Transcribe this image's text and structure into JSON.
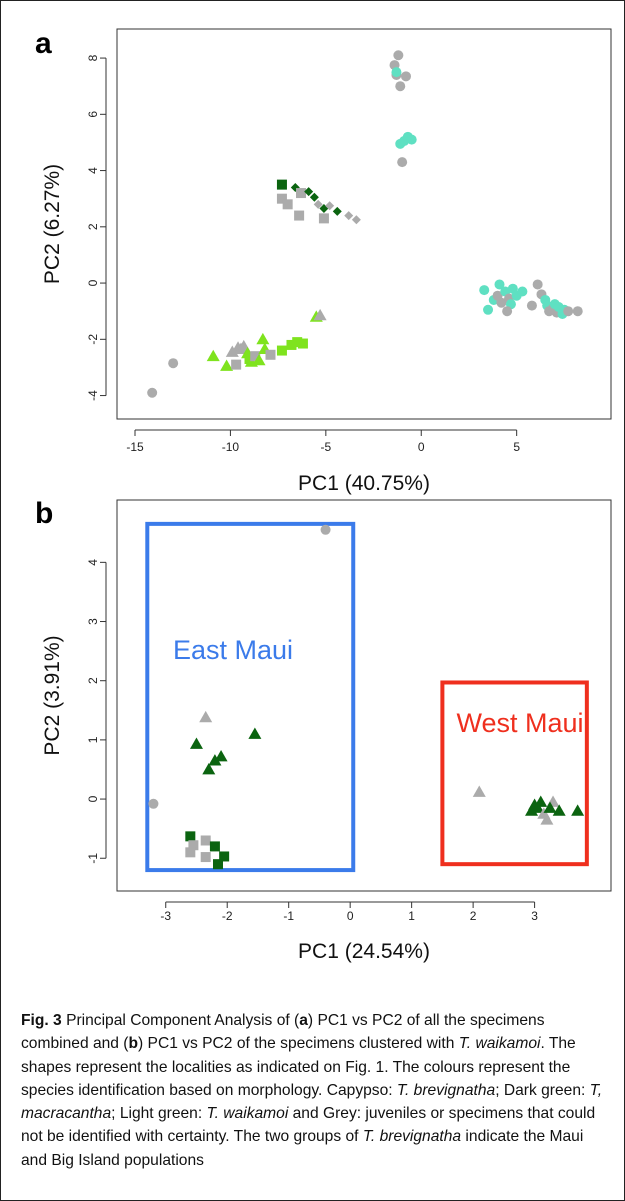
{
  "chart_data": [
    {
      "type": "scatter",
      "panel_label": "a",
      "xlabel": "PC1 (40.75%)",
      "ylabel": "PC2 (6.27%)",
      "xlim": [
        -15,
        9
      ],
      "ylim": [
        -4.3,
        8.5
      ],
      "xticks": [
        -15,
        -10,
        -5,
        0,
        5
      ],
      "yticks": [
        -4,
        -2,
        0,
        2,
        4,
        6,
        8
      ],
      "colors": {
        "grey": "#ababab",
        "dark_green": "#0b6410",
        "light_green": "#7fe31e",
        "turquoise": "#5fe0c2"
      },
      "points": [
        {
          "x": -14.1,
          "y": -3.9,
          "shape": "circle",
          "color": "grey"
        },
        {
          "x": -13.0,
          "y": -2.85,
          "shape": "circle",
          "color": "grey"
        },
        {
          "x": -10.9,
          "y": -2.6,
          "shape": "triangle",
          "color": "light_green"
        },
        {
          "x": -10.2,
          "y": -2.95,
          "shape": "triangle",
          "color": "light_green"
        },
        {
          "x": -9.9,
          "y": -2.45,
          "shape": "triangle",
          "color": "grey"
        },
        {
          "x": -9.6,
          "y": -2.3,
          "shape": "triangle",
          "color": "grey"
        },
        {
          "x": -9.45,
          "y": -2.35,
          "shape": "triangle",
          "color": "grey"
        },
        {
          "x": -9.3,
          "y": -2.25,
          "shape": "triangle",
          "color": "grey"
        },
        {
          "x": -9.7,
          "y": -2.9,
          "shape": "square",
          "color": "grey"
        },
        {
          "x": -9.1,
          "y": -2.5,
          "shape": "triangle",
          "color": "light_green"
        },
        {
          "x": -9.0,
          "y": -2.7,
          "shape": "square",
          "color": "light_green"
        },
        {
          "x": -8.9,
          "y": -2.8,
          "shape": "triangle",
          "color": "light_green"
        },
        {
          "x": -8.7,
          "y": -2.6,
          "shape": "square",
          "color": "grey"
        },
        {
          "x": -8.5,
          "y": -2.75,
          "shape": "triangle",
          "color": "light_green"
        },
        {
          "x": -8.3,
          "y": -2.0,
          "shape": "triangle",
          "color": "light_green"
        },
        {
          "x": -8.2,
          "y": -2.35,
          "shape": "triangle",
          "color": "light_green"
        },
        {
          "x": -7.9,
          "y": -2.55,
          "shape": "square",
          "color": "grey"
        },
        {
          "x": -7.3,
          "y": -2.4,
          "shape": "square",
          "color": "light_green"
        },
        {
          "x": -6.8,
          "y": -2.2,
          "shape": "square",
          "color": "light_green"
        },
        {
          "x": -6.5,
          "y": -2.1,
          "shape": "square",
          "color": "light_green"
        },
        {
          "x": -6.2,
          "y": -2.15,
          "shape": "square",
          "color": "light_green"
        },
        {
          "x": -5.5,
          "y": -1.2,
          "shape": "triangle",
          "color": "light_green"
        },
        {
          "x": -5.3,
          "y": -1.15,
          "shape": "triangle",
          "color": "grey"
        },
        {
          "x": -7.3,
          "y": 3.5,
          "shape": "square",
          "color": "dark_green"
        },
        {
          "x": -7.3,
          "y": 3.0,
          "shape": "square",
          "color": "grey"
        },
        {
          "x": -7.0,
          "y": 2.8,
          "shape": "square",
          "color": "grey"
        },
        {
          "x": -6.6,
          "y": 3.4,
          "shape": "diamond",
          "color": "dark_green"
        },
        {
          "x": -6.3,
          "y": 3.2,
          "shape": "square",
          "color": "grey"
        },
        {
          "x": -6.4,
          "y": 2.4,
          "shape": "square",
          "color": "grey"
        },
        {
          "x": -5.9,
          "y": 3.25,
          "shape": "diamond",
          "color": "dark_green"
        },
        {
          "x": -5.6,
          "y": 3.05,
          "shape": "diamond",
          "color": "dark_green"
        },
        {
          "x": -5.4,
          "y": 2.8,
          "shape": "diamond",
          "color": "grey"
        },
        {
          "x": -5.1,
          "y": 2.3,
          "shape": "square",
          "color": "grey"
        },
        {
          "x": -5.1,
          "y": 2.65,
          "shape": "diamond",
          "color": "dark_green"
        },
        {
          "x": -4.8,
          "y": 2.75,
          "shape": "diamond",
          "color": "grey"
        },
        {
          "x": -4.4,
          "y": 2.55,
          "shape": "diamond",
          "color": "dark_green"
        },
        {
          "x": -3.8,
          "y": 2.4,
          "shape": "diamond",
          "color": "grey"
        },
        {
          "x": -3.4,
          "y": 2.25,
          "shape": "diamond",
          "color": "grey"
        },
        {
          "x": -1.4,
          "y": 7.75,
          "shape": "circle",
          "color": "grey"
        },
        {
          "x": -1.2,
          "y": 8.1,
          "shape": "circle",
          "color": "grey"
        },
        {
          "x": -1.3,
          "y": 7.4,
          "shape": "circle",
          "color": "grey"
        },
        {
          "x": -1.1,
          "y": 7.0,
          "shape": "circle",
          "color": "grey"
        },
        {
          "x": -0.8,
          "y": 7.35,
          "shape": "circle",
          "color": "grey"
        },
        {
          "x": -1.3,
          "y": 7.5,
          "shape": "circle",
          "color": "turquoise"
        },
        {
          "x": -0.9,
          "y": 5.05,
          "shape": "circle",
          "color": "turquoise"
        },
        {
          "x": -0.7,
          "y": 5.2,
          "shape": "circle",
          "color": "turquoise"
        },
        {
          "x": -0.5,
          "y": 5.1,
          "shape": "circle",
          "color": "turquoise"
        },
        {
          "x": -1.1,
          "y": 4.95,
          "shape": "circle",
          "color": "turquoise"
        },
        {
          "x": -1.0,
          "y": 4.3,
          "shape": "circle",
          "color": "grey"
        },
        {
          "x": 3.3,
          "y": -0.25,
          "shape": "circle",
          "color": "turquoise"
        },
        {
          "x": 3.5,
          "y": -0.95,
          "shape": "circle",
          "color": "turquoise"
        },
        {
          "x": 3.8,
          "y": -0.6,
          "shape": "circle",
          "color": "turquoise"
        },
        {
          "x": 4.0,
          "y": -0.45,
          "shape": "circle",
          "color": "grey"
        },
        {
          "x": 4.1,
          "y": -0.05,
          "shape": "circle",
          "color": "turquoise"
        },
        {
          "x": 4.2,
          "y": -0.7,
          "shape": "circle",
          "color": "grey"
        },
        {
          "x": 4.4,
          "y": -0.3,
          "shape": "circle",
          "color": "turquoise"
        },
        {
          "x": 4.6,
          "y": -0.55,
          "shape": "circle",
          "color": "grey"
        },
        {
          "x": 4.7,
          "y": -0.75,
          "shape": "circle",
          "color": "turquoise"
        },
        {
          "x": 4.8,
          "y": -0.2,
          "shape": "circle",
          "color": "turquoise"
        },
        {
          "x": 5.0,
          "y": -0.45,
          "shape": "circle",
          "color": "turquoise"
        },
        {
          "x": 4.5,
          "y": -1.0,
          "shape": "circle",
          "color": "grey"
        },
        {
          "x": 5.3,
          "y": -0.3,
          "shape": "circle",
          "color": "turquoise"
        },
        {
          "x": 5.8,
          "y": -0.8,
          "shape": "circle",
          "color": "grey"
        },
        {
          "x": 6.1,
          "y": -0.05,
          "shape": "circle",
          "color": "grey"
        },
        {
          "x": 6.3,
          "y": -0.4,
          "shape": "circle",
          "color": "grey"
        },
        {
          "x": 6.5,
          "y": -0.6,
          "shape": "circle",
          "color": "turquoise"
        },
        {
          "x": 6.6,
          "y": -0.8,
          "shape": "circle",
          "color": "turquoise"
        },
        {
          "x": 6.7,
          "y": -1.0,
          "shape": "circle",
          "color": "grey"
        },
        {
          "x": 6.9,
          "y": -0.9,
          "shape": "circle",
          "color": "grey"
        },
        {
          "x": 7.0,
          "y": -0.75,
          "shape": "circle",
          "color": "turquoise"
        },
        {
          "x": 7.1,
          "y": -1.05,
          "shape": "circle",
          "color": "grey"
        },
        {
          "x": 7.2,
          "y": -0.85,
          "shape": "circle",
          "color": "turquoise"
        },
        {
          "x": 7.4,
          "y": -1.1,
          "shape": "circle",
          "color": "turquoise"
        },
        {
          "x": 7.5,
          "y": -0.95,
          "shape": "circle",
          "color": "turquoise"
        },
        {
          "x": 7.7,
          "y": -1.0,
          "shape": "circle",
          "color": "grey"
        },
        {
          "x": 8.2,
          "y": -1.0,
          "shape": "circle",
          "color": "grey"
        }
      ]
    },
    {
      "type": "scatter",
      "panel_label": "b",
      "xlabel": "PC1 (24.54%)",
      "ylabel": "PC2 (3.91%)",
      "xlim": [
        -3.5,
        3.95
      ],
      "ylim": [
        -1.3,
        4.8
      ],
      "xticks": [
        -3,
        -2,
        -1,
        0,
        1,
        2,
        3
      ],
      "yticks": [
        -1,
        0,
        1,
        2,
        3,
        4
      ],
      "colors": {
        "grey": "#ababab",
        "dark_green": "#0b6410",
        "east_box": "#3b7bea",
        "west_box": "#ef2f1e"
      },
      "annotations": [
        {
          "text": "East Maui",
          "color": "#3b7bea"
        },
        {
          "text": "West Maui",
          "color": "#ef2f1e"
        }
      ],
      "boxes": [
        {
          "name": "East Maui",
          "x0": -3.3,
          "x1": 0.05,
          "y0": -1.2,
          "y1": 4.65
        },
        {
          "name": "West Maui",
          "x0": 1.5,
          "x1": 3.85,
          "y0": -1.1,
          "y1": 1.97
        }
      ],
      "points": [
        {
          "x": -0.4,
          "y": 4.55,
          "shape": "circle",
          "color": "grey"
        },
        {
          "x": -3.2,
          "y": -0.08,
          "shape": "circle",
          "color": "grey"
        },
        {
          "x": -2.35,
          "y": 1.38,
          "shape": "triangle",
          "color": "grey"
        },
        {
          "x": -2.5,
          "y": 0.93,
          "shape": "triangle",
          "color": "dark_green"
        },
        {
          "x": -2.2,
          "y": 0.65,
          "shape": "triangle",
          "color": "dark_green"
        },
        {
          "x": -2.1,
          "y": 0.72,
          "shape": "triangle",
          "color": "dark_green"
        },
        {
          "x": -2.3,
          "y": 0.5,
          "shape": "triangle",
          "color": "dark_green"
        },
        {
          "x": -1.55,
          "y": 1.1,
          "shape": "triangle",
          "color": "dark_green"
        },
        {
          "x": -2.6,
          "y": -0.63,
          "shape": "square",
          "color": "dark_green"
        },
        {
          "x": -2.55,
          "y": -0.78,
          "shape": "square",
          "color": "grey"
        },
        {
          "x": -2.6,
          "y": -0.9,
          "shape": "square",
          "color": "grey"
        },
        {
          "x": -2.35,
          "y": -0.7,
          "shape": "square",
          "color": "grey"
        },
        {
          "x": -2.35,
          "y": -0.98,
          "shape": "square",
          "color": "grey"
        },
        {
          "x": -2.2,
          "y": -0.8,
          "shape": "square",
          "color": "dark_green"
        },
        {
          "x": -2.05,
          "y": -0.97,
          "shape": "square",
          "color": "dark_green"
        },
        {
          "x": -2.15,
          "y": -1.1,
          "shape": "square",
          "color": "dark_green"
        },
        {
          "x": 2.1,
          "y": 0.12,
          "shape": "triangle",
          "color": "grey"
        },
        {
          "x": 2.95,
          "y": -0.2,
          "shape": "triangle",
          "color": "dark_green"
        },
        {
          "x": 3.0,
          "y": -0.1,
          "shape": "triangle",
          "color": "dark_green"
        },
        {
          "x": 3.05,
          "y": -0.15,
          "shape": "triangle",
          "color": "dark_green"
        },
        {
          "x": 3.1,
          "y": -0.05,
          "shape": "triangle",
          "color": "dark_green"
        },
        {
          "x": 3.15,
          "y": -0.25,
          "shape": "triangle",
          "color": "grey"
        },
        {
          "x": 3.2,
          "y": -0.35,
          "shape": "triangle",
          "color": "grey"
        },
        {
          "x": 3.3,
          "y": -0.05,
          "shape": "triangle",
          "color": "grey"
        },
        {
          "x": 3.25,
          "y": -0.15,
          "shape": "triangle",
          "color": "dark_green"
        },
        {
          "x": 3.4,
          "y": -0.2,
          "shape": "triangle",
          "color": "dark_green"
        },
        {
          "x": 3.7,
          "y": -0.2,
          "shape": "triangle",
          "color": "dark_green"
        }
      ]
    }
  ],
  "caption": {
    "fig_label": "Fig. 3",
    "parts": [
      {
        "text": " Principal Component Analysis of (",
        "style": "normal"
      },
      {
        "text": "a",
        "style": "bold"
      },
      {
        "text": ") PC1 vs PC2 of all the specimens combined and (",
        "style": "normal"
      },
      {
        "text": "b",
        "style": "bold"
      },
      {
        "text": ") PC1 vs PC2 of the specimens clustered with ",
        "style": "normal"
      },
      {
        "text": "T. waikamoi",
        "style": "italic"
      },
      {
        "text": ". The shapes represent the localities as indicated on Fig. 1. The colours represent the species identification based on morphology. Capypso: ",
        "style": "normal"
      },
      {
        "text": "T. brevignatha",
        "style": "italic"
      },
      {
        "text": "; Dark green: ",
        "style": "normal"
      },
      {
        "text": "T, macracantha",
        "style": "italic"
      },
      {
        "text": "; Light green: ",
        "style": "normal"
      },
      {
        "text": "T. waikamoi",
        "style": "italic"
      },
      {
        "text": " and Grey: juveniles or specimens that could not be identified with certainty. The two groups of ",
        "style": "normal"
      },
      {
        "text": "T. brevignatha",
        "style": "italic"
      },
      {
        "text": " indicate the Maui and Big Island populations",
        "style": "normal"
      }
    ]
  }
}
